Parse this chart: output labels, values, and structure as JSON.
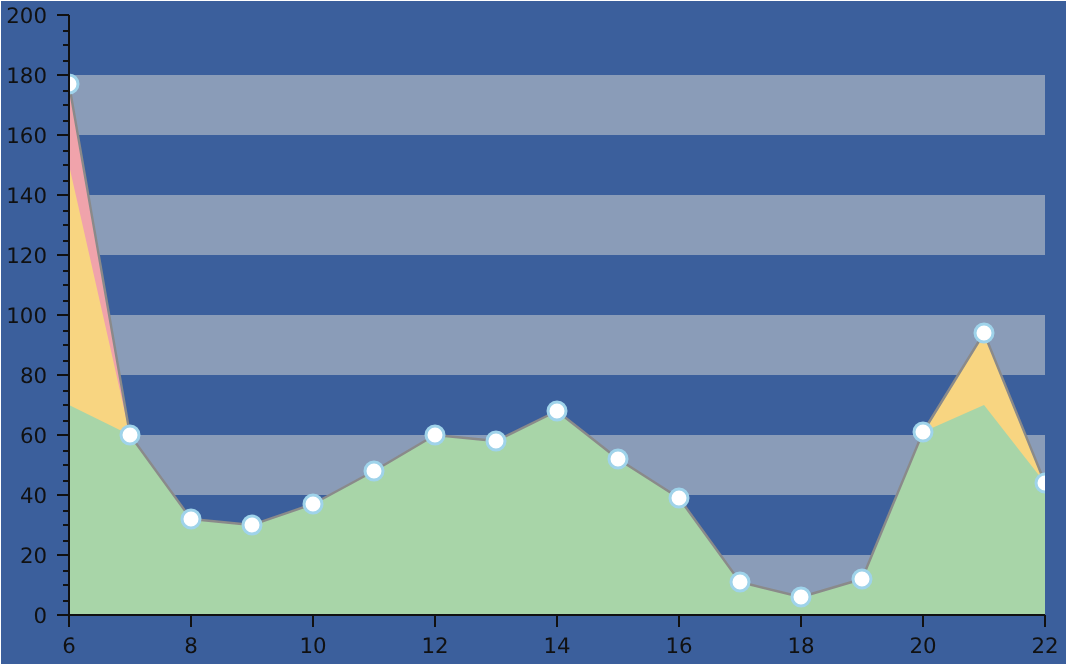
{
  "chart_data": {
    "type": "area",
    "x": [
      6,
      7,
      8,
      9,
      10,
      11,
      12,
      13,
      14,
      15,
      16,
      17,
      18,
      19,
      20,
      21,
      22
    ],
    "series": [
      {
        "color": "#f0a3ab",
        "marker": "circle",
        "values": [
          177,
          60,
          32,
          30,
          37,
          48,
          60,
          58,
          68,
          52,
          39,
          11,
          6,
          12,
          61,
          94,
          44
        ]
      },
      {
        "color": "#f8d581",
        "marker": "none",
        "values": [
          150,
          60,
          32,
          30,
          37,
          48,
          60,
          58,
          68,
          52,
          39,
          11,
          6,
          12,
          61,
          94,
          44
        ]
      },
      {
        "color": "#a8d5a8",
        "marker": "none",
        "values": [
          70,
          60,
          32,
          30,
          37,
          48,
          60,
          58,
          68,
          52,
          39,
          11,
          6,
          12,
          61,
          70,
          44
        ]
      }
    ],
    "xlim": [
      6,
      22
    ],
    "ylim": [
      0,
      200
    ],
    "xticks": [
      6,
      8,
      10,
      12,
      14,
      16,
      18,
      20,
      22
    ],
    "yticks": [
      0,
      20,
      40,
      60,
      80,
      100,
      120,
      140,
      160,
      180,
      200
    ],
    "bands": [
      {
        "axis": "y",
        "from": 0,
        "to": 20,
        "color": "#8a9cb8"
      },
      {
        "axis": "y",
        "from": 40,
        "to": 60,
        "color": "#8a9cb8"
      },
      {
        "axis": "y",
        "from": 80,
        "to": 100,
        "color": "#8a9cb8"
      },
      {
        "axis": "y",
        "from": 120,
        "to": 140,
        "color": "#8a9cb8"
      },
      {
        "axis": "y",
        "from": 160,
        "to": 180,
        "color": "#8a9cb8"
      }
    ]
  }
}
